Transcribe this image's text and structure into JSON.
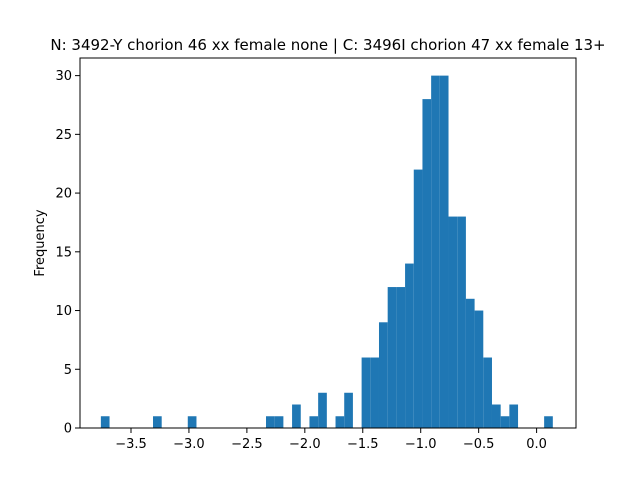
{
  "chart_data": {
    "type": "bar",
    "subtype": "histogram",
    "title": "N: 3492-Y chorion 46 xx female none | C: 3496I chorion 47 xx female 13+",
    "xlabel": "",
    "ylabel": "Frequency",
    "xlim": [
      -3.94,
      0.34
    ],
    "ylim": [
      0,
      31.5
    ],
    "x_ticks": [
      -3.5,
      -3.0,
      -2.5,
      -2.0,
      -1.5,
      -1.0,
      -0.5,
      0.0
    ],
    "x_tick_labels": [
      "−3.5",
      "−3.0",
      "−2.5",
      "−2.0",
      "−1.5",
      "−1.0",
      "−0.5",
      "0.0"
    ],
    "y_ticks": [
      0,
      5,
      10,
      15,
      20,
      25,
      30
    ],
    "y_tick_labels": [
      "0",
      "5",
      "10",
      "15",
      "20",
      "25",
      "30"
    ],
    "grid": false,
    "legend": "none",
    "bar_color": "#1f77b4",
    "bins": [
      {
        "x0": -3.76,
        "x1": -3.685,
        "count": 1
      },
      {
        "x0": -3.31,
        "x1": -3.235,
        "count": 1
      },
      {
        "x0": -3.01,
        "x1": -2.935,
        "count": 1
      },
      {
        "x0": -2.335,
        "x1": -2.26,
        "count": 1
      },
      {
        "x0": -2.26,
        "x1": -2.185,
        "count": 1
      },
      {
        "x0": -2.11,
        "x1": -2.035,
        "count": 2
      },
      {
        "x0": -1.96,
        "x1": -1.885,
        "count": 1
      },
      {
        "x0": -1.885,
        "x1": -1.81,
        "count": 3
      },
      {
        "x0": -1.735,
        "x1": -1.66,
        "count": 1
      },
      {
        "x0": -1.66,
        "x1": -1.585,
        "count": 3
      },
      {
        "x0": -1.51,
        "x1": -1.435,
        "count": 6
      },
      {
        "x0": -1.435,
        "x1": -1.36,
        "count": 6
      },
      {
        "x0": -1.36,
        "x1": -1.285,
        "count": 9
      },
      {
        "x0": -1.285,
        "x1": -1.21,
        "count": 12
      },
      {
        "x0": -1.21,
        "x1": -1.135,
        "count": 12
      },
      {
        "x0": -1.135,
        "x1": -1.06,
        "count": 14
      },
      {
        "x0": -1.06,
        "x1": -0.985,
        "count": 22
      },
      {
        "x0": -0.985,
        "x1": -0.91,
        "count": 28
      },
      {
        "x0": -0.91,
        "x1": -0.835,
        "count": 30
      },
      {
        "x0": -0.835,
        "x1": -0.76,
        "count": 30
      },
      {
        "x0": -0.76,
        "x1": -0.685,
        "count": 18
      },
      {
        "x0": -0.685,
        "x1": -0.61,
        "count": 18
      },
      {
        "x0": -0.61,
        "x1": -0.535,
        "count": 11
      },
      {
        "x0": -0.535,
        "x1": -0.46,
        "count": 10
      },
      {
        "x0": -0.46,
        "x1": -0.385,
        "count": 6
      },
      {
        "x0": -0.385,
        "x1": -0.31,
        "count": 2
      },
      {
        "x0": -0.31,
        "x1": -0.235,
        "count": 1
      },
      {
        "x0": -0.235,
        "x1": -0.16,
        "count": 2
      },
      {
        "x0": 0.065,
        "x1": 0.14,
        "count": 1
      }
    ]
  }
}
